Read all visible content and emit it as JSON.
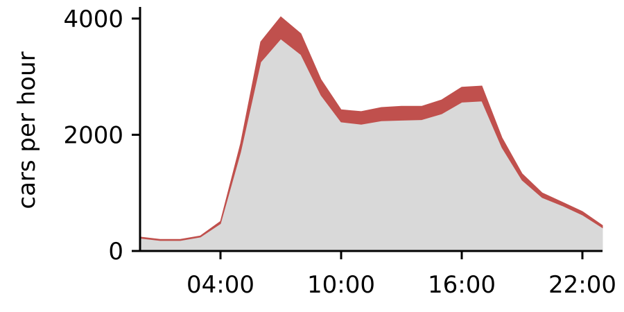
{
  "chart_data": {
    "type": "area",
    "stacked": true,
    "title": "",
    "xlabel": "",
    "ylabel": "cars per hour",
    "x": [
      "00:00",
      "01:00",
      "02:00",
      "03:00",
      "04:00",
      "05:00",
      "06:00",
      "07:00",
      "08:00",
      "09:00",
      "10:00",
      "11:00",
      "12:00",
      "13:00",
      "14:00",
      "15:00",
      "16:00",
      "17:00",
      "18:00",
      "19:00",
      "20:00",
      "21:00",
      "22:00",
      "23:00"
    ],
    "x_tick_labels": [
      "04:00",
      "10:00",
      "16:00",
      "22:00"
    ],
    "y_ticks": [
      0,
      2000,
      4000
    ],
    "ylim": [
      0,
      4200
    ],
    "xlim": [
      "00:00",
      "23:00"
    ],
    "grid": false,
    "legend": "none",
    "series": [
      {
        "color": "#d9d9d9",
        "values": [
          220,
          180,
          180,
          240,
          470,
          1700,
          3250,
          3650,
          3380,
          2680,
          2220,
          2180,
          2240,
          2250,
          2260,
          2360,
          2560,
          2580,
          1780,
          1220,
          920,
          780,
          620,
          400
        ]
      },
      {
        "color": "#c0504d",
        "values": [
          20,
          20,
          20,
          20,
          40,
          150,
          350,
          380,
          360,
          270,
          210,
          220,
          230,
          240,
          230,
          240,
          260,
          260,
          170,
          110,
          80,
          60,
          60,
          40
        ]
      }
    ]
  }
}
